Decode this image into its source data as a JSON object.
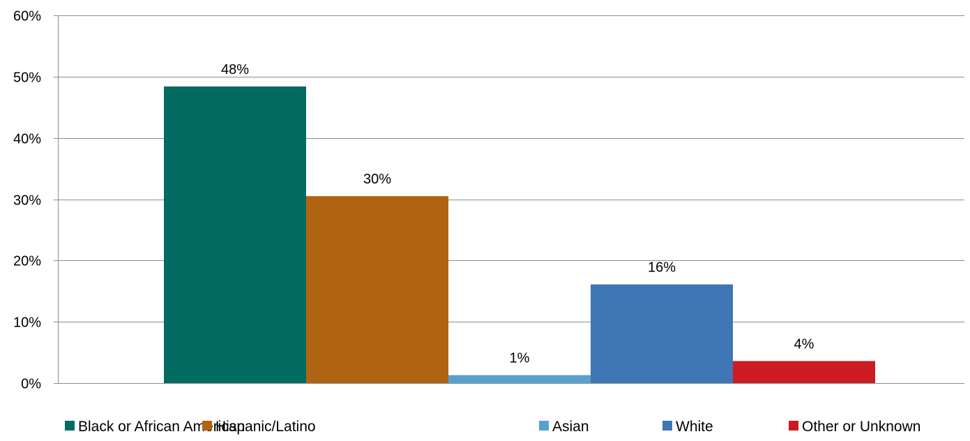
{
  "chart_data": {
    "type": "bar",
    "title": "",
    "xlabel": "",
    "ylabel": "",
    "ylim": [
      0,
      60
    ],
    "y_ticks": [
      "0%",
      "10%",
      "20%",
      "30%",
      "40%",
      "50%",
      "60%"
    ],
    "y_tick_values": [
      0,
      10,
      20,
      30,
      40,
      50,
      60
    ],
    "grid": true,
    "legend_position": "bottom",
    "series": [
      {
        "name": "Black or African American",
        "value": 48.4,
        "label": "48%",
        "color": "#036b61"
      },
      {
        "name": "Hispanic/Latino",
        "value": 30.5,
        "label": "30%",
        "color": "#b06412"
      },
      {
        "name": "Asian",
        "value": 1.3,
        "label": "1%",
        "color": "#57a1cf"
      },
      {
        "name": "White",
        "value": 16.1,
        "label": "16%",
        "color": "#3f76b6"
      },
      {
        "name": "Other or Unknown",
        "value": 3.6,
        "label": "4%",
        "color": "#cd1b23"
      }
    ]
  }
}
